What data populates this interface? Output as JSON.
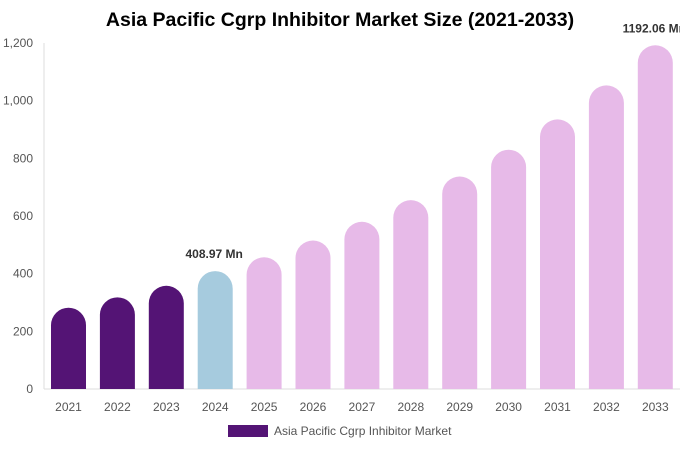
{
  "chart_data": {
    "type": "bar",
    "title": "Asia Pacific Cgrp Inhibitor Market Size (2021-2033)",
    "categories": [
      "2021",
      "2022",
      "2023",
      "2024",
      "2025",
      "2026",
      "2027",
      "2028",
      "2029",
      "2030",
      "2031",
      "2032",
      "2033"
    ],
    "series": [
      {
        "name": "Asia Pacific Cgrp Inhibitor Market",
        "values": [
          282,
          318,
          358,
          408.97,
          457,
          515,
          580,
          655,
          737,
          830,
          935,
          1053,
          1192.06
        ]
      }
    ],
    "bar_segments": [
      "historical",
      "historical",
      "historical",
      "base",
      "forecast",
      "forecast",
      "forecast",
      "forecast",
      "forecast",
      "forecast",
      "forecast",
      "forecast",
      "forecast"
    ],
    "data_labels": [
      {
        "category": "2024",
        "text": "408.97 Mn"
      },
      {
        "category": "2033",
        "text": "1192.06 Mn"
      }
    ],
    "yticks": [
      "0",
      "200",
      "400",
      "600",
      "800",
      "1,000",
      "1,200"
    ],
    "ylim": [
      0,
      1200
    ],
    "xlabel": "",
    "ylabel": "",
    "grid": false,
    "legend_position": "bottom",
    "colors": {
      "historical": "#541475",
      "base": "#A6CBDE",
      "forecast": "#E7BAE8",
      "legend": "#541475"
    }
  }
}
